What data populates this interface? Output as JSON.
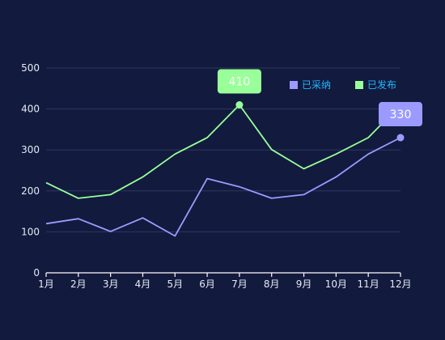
{
  "chart_data": {
    "type": "line",
    "categories": [
      "1月",
      "2月",
      "3月",
      "4月",
      "5月",
      "6月",
      "7月",
      "8月",
      "9月",
      "10月",
      "11月",
      "12月"
    ],
    "ylim": [
      0,
      500
    ],
    "yticks": [
      0,
      100,
      200,
      300,
      400,
      500
    ],
    "grid": true,
    "legend_position": "top-right",
    "series": [
      {
        "name": "已采纳",
        "color": "#9b9bff",
        "values": [
          120,
          132,
          101,
          134,
          90,
          230,
          210,
          182,
          191,
          234,
          290,
          330
        ],
        "callout": {
          "index": 11,
          "label": "330"
        }
      },
      {
        "name": "已发布",
        "color": "#99ff99",
        "values": [
          220,
          182,
          191,
          234,
          290,
          330,
          410,
          301,
          254,
          290,
          330,
          410
        ],
        "callout": {
          "index": 6,
          "label": "410"
        }
      }
    ]
  }
}
